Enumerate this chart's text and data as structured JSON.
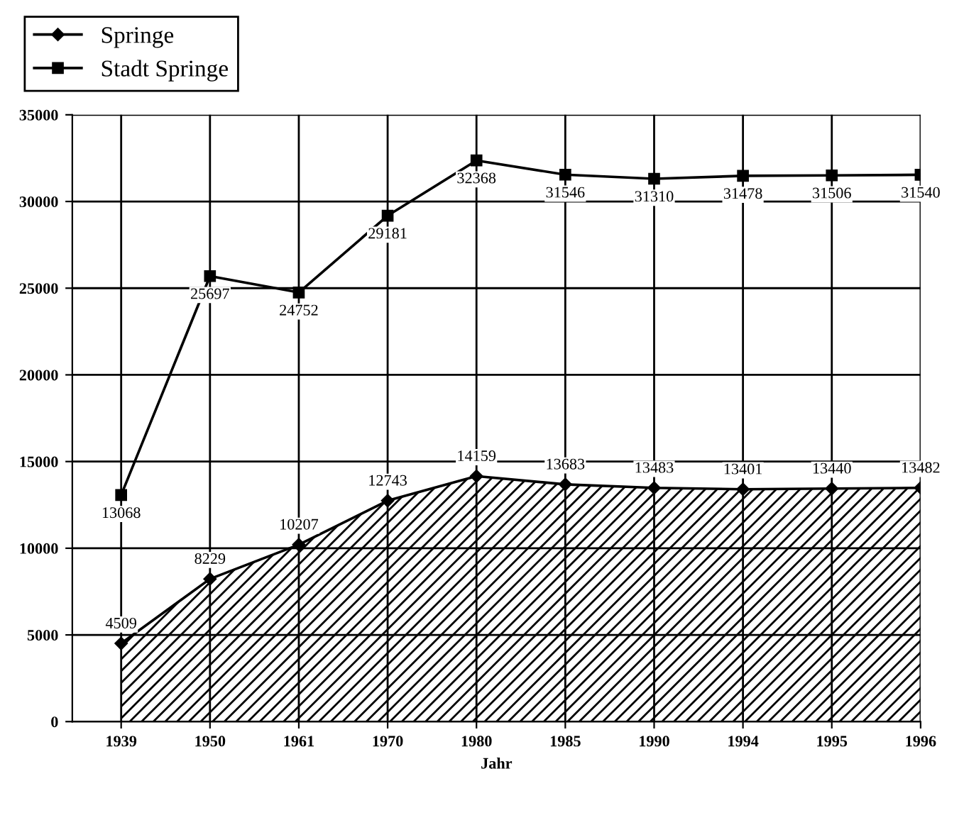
{
  "chart_data": {
    "type": "line",
    "xlabel": "Jahr",
    "categories": [
      "1939",
      "1950",
      "1961",
      "1970",
      "1980",
      "1985",
      "1990",
      "1994",
      "1995",
      "1996"
    ],
    "series": [
      {
        "name": "Springe",
        "type": "area",
        "color": "#000000",
        "marker": "diamond",
        "values": [
          4509,
          8229,
          10207,
          12743,
          14159,
          13683,
          13483,
          13401,
          13440,
          13482
        ]
      },
      {
        "name": "Stadt Springe",
        "color": "#000000",
        "marker": "square",
        "values": [
          13068,
          25697,
          24752,
          29181,
          32368,
          31546,
          31310,
          31478,
          31506,
          31540
        ]
      }
    ],
    "ylim": [
      0,
      35000
    ],
    "yticks": [
      0,
      5000,
      10000,
      15000,
      20000,
      25000,
      30000,
      35000
    ],
    "grid": true,
    "legend": "top left",
    "data_labels": true
  }
}
